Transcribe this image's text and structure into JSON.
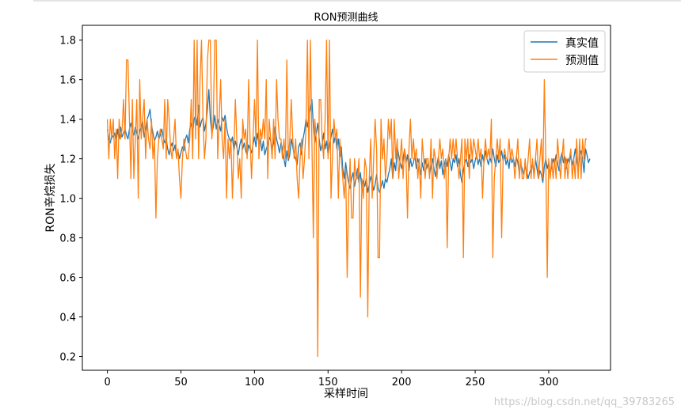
{
  "watermark": "https://blog.csdn.net/qq_39783265",
  "chart_data": {
    "type": "line",
    "title": "RON预测曲线",
    "xlabel": "采样时间",
    "ylabel": "RON辛烷损失",
    "xlim": [
      -17,
      342
    ],
    "ylim": [
      0.13,
      1.875
    ],
    "xticks": [
      0,
      50,
      100,
      150,
      200,
      250,
      300
    ],
    "yticks": [
      0.2,
      0.4,
      0.6,
      0.8,
      1.0,
      1.2,
      1.4,
      1.6,
      1.8
    ],
    "ytick_labels": [
      "0.2",
      "0.4",
      "0.6",
      "0.8",
      "1.0",
      "1.2",
      "1.4",
      "1.6",
      "1.8"
    ],
    "grid": false,
    "legend": "top-right",
    "series": [
      {
        "name": "真实值",
        "color": "#1f77b4",
        "values": [
          1.35,
          1.3,
          1.28,
          1.32,
          1.31,
          1.33,
          1.28,
          1.35,
          1.3,
          1.36,
          1.31,
          1.33,
          1.35,
          1.32,
          1.3,
          1.35,
          1.38,
          1.34,
          1.32,
          1.36,
          1.33,
          1.3,
          1.34,
          1.36,
          1.39,
          1.31,
          1.35,
          1.4,
          1.42,
          1.45,
          1.37,
          1.33,
          1.29,
          1.31,
          1.34,
          1.3,
          1.32,
          1.35,
          1.31,
          1.28,
          1.3,
          1.25,
          1.22,
          1.26,
          1.28,
          1.24,
          1.27,
          1.21,
          1.24,
          1.2,
          1.23,
          1.26,
          1.24,
          1.3,
          1.32,
          1.28,
          1.35,
          1.38,
          1.33,
          1.4,
          1.42,
          1.37,
          1.47,
          1.36,
          1.39,
          1.41,
          1.34,
          1.38,
          1.45,
          1.55,
          1.4,
          1.33,
          1.36,
          1.42,
          1.35,
          1.4,
          1.37,
          1.34,
          1.41,
          1.39,
          1.42,
          1.36,
          1.32,
          1.3,
          1.28,
          1.31,
          1.24,
          1.29,
          1.26,
          1.22,
          1.27,
          1.3,
          1.25,
          1.28,
          1.24,
          1.22,
          1.27,
          1.25,
          1.23,
          1.27,
          1.31,
          1.26,
          1.33,
          1.28,
          1.3,
          1.24,
          1.29,
          1.22,
          1.25,
          1.27,
          1.31,
          1.29,
          1.25,
          1.28,
          1.36,
          1.3,
          1.27,
          1.23,
          1.28,
          1.25,
          1.2,
          1.16,
          1.24,
          1.19,
          1.22,
          1.3,
          1.26,
          1.22,
          1.2,
          1.17,
          1.26,
          1.28,
          1.22,
          1.3,
          1.34,
          1.4,
          1.36,
          1.42,
          1.45,
          1.5,
          1.37,
          1.28,
          1.33,
          1.38,
          1.3,
          1.24,
          1.27,
          1.33,
          1.25,
          1.29,
          1.22,
          1.27,
          1.31,
          1.35,
          1.28,
          1.32,
          1.25,
          1.3,
          1.21,
          1.26,
          1.15,
          1.1,
          1.18,
          1.12,
          1.08,
          1.05,
          1.1,
          1.13,
          1.06,
          1.1,
          1.15,
          1.08,
          1.13,
          1.05,
          1.09,
          1.06,
          1.1,
          1.03,
          1.07,
          1.11,
          1.08,
          1.04,
          1.07,
          1.12,
          1.05,
          1.03,
          1.06,
          1.09,
          1.05,
          1.1,
          1.08,
          1.12,
          1.15,
          1.2,
          1.1,
          1.18,
          1.14,
          1.26,
          1.22,
          1.18,
          1.15,
          1.2,
          1.25,
          1.18,
          1.22,
          1.14,
          1.2,
          1.16,
          1.18,
          1.22,
          1.15,
          1.2,
          1.17,
          1.12,
          1.18,
          1.14,
          1.2,
          1.15,
          1.18,
          1.12,
          1.16,
          1.2,
          1.15,
          1.11,
          1.17,
          1.21,
          1.15,
          1.19,
          1.12,
          1.17,
          1.2,
          1.16,
          1.22,
          1.18,
          1.14,
          1.2,
          1.18,
          1.22,
          1.16,
          1.2,
          1.12,
          1.08,
          1.14,
          1.18,
          1.2,
          1.16,
          1.22,
          1.18,
          1.2,
          1.15,
          1.19,
          1.22,
          1.17,
          1.2,
          1.16,
          1.22,
          1.18,
          1.24,
          1.2,
          1.17,
          1.21,
          1.18,
          1.25,
          1.2,
          1.16,
          1.22,
          1.18,
          1.2,
          1.24,
          1.19,
          1.22,
          1.17,
          1.2,
          1.15,
          1.22,
          1.18,
          1.2,
          1.16,
          1.21,
          1.18,
          1.13,
          1.17,
          1.15,
          1.12,
          1.16,
          1.14,
          1.1,
          1.13,
          1.15,
          1.18,
          1.12,
          1.2,
          1.15,
          1.1,
          1.14,
          1.12,
          1.08,
          1.16,
          1.2,
          1.15,
          1.18,
          1.12,
          1.16,
          1.2,
          1.17,
          1.22,
          1.18,
          1.14,
          1.2,
          1.23,
          1.18,
          1.21,
          1.15,
          1.2,
          1.18,
          1.22,
          1.17,
          1.2,
          1.25,
          1.19,
          1.15,
          1.21,
          1.24,
          1.2,
          1.13,
          1.25,
          1.22,
          1.18,
          1.2
        ]
      },
      {
        "name": "预测值",
        "color": "#ff7f0e",
        "values": [
          1.4,
          1.2,
          1.4,
          1.3,
          1.4,
          1.2,
          1.35,
          1.1,
          1.4,
          1.3,
          1.35,
          1.5,
          1.3,
          1.7,
          1.7,
          1.4,
          1.1,
          1.5,
          1.1,
          1.3,
          1.5,
          1.0,
          1.6,
          1.3,
          1.4,
          1.5,
          1.2,
          1.4,
          1.3,
          1.25,
          1.4,
          1.2,
          1.3,
          0.9,
          1.2,
          1.3,
          1.35,
          1.3,
          1.25,
          1.5,
          1.2,
          1.5,
          1.4,
          1.25,
          1.2,
          1.3,
          1.4,
          1.2,
          1.25,
          1.1,
          1.0,
          1.2,
          1.3,
          1.25,
          1.2,
          1.2,
          1.3,
          1.5,
          1.2,
          1.8,
          1.3,
          1.8,
          1.2,
          1.6,
          1.8,
          1.4,
          1.2,
          1.3,
          1.7,
          1.8,
          1.8,
          1.3,
          1.4,
          1.8,
          1.8,
          1.2,
          1.4,
          1.6,
          1.3,
          1.2,
          1.4,
          1.0,
          1.3,
          1.2,
          1.3,
          1.0,
          1.25,
          1.5,
          1.3,
          1.1,
          1.2,
          1.0,
          1.4,
          1.3,
          1.35,
          1.2,
          1.6,
          1.3,
          1.1,
          1.3,
          1.5,
          1.3,
          1.8,
          1.2,
          1.35,
          1.3,
          1.4,
          1.3,
          1.6,
          1.1,
          1.4,
          1.3,
          1.2,
          1.4,
          1.2,
          1.6,
          1.4,
          1.3,
          1.3,
          1.2,
          1.3,
          1.2,
          1.7,
          1.2,
          1.3,
          1.5,
          1.3,
          1.2,
          1.3,
          1.1,
          1.0,
          1.2,
          1.3,
          1.1,
          1.2,
          1.35,
          1.8,
          1.2,
          1.8,
          1.3,
          0.8,
          1.4,
          1.3,
          0.2,
          1.5,
          1.5,
          1.3,
          1.2,
          1.4,
          1.8,
          1.2,
          1.8,
          1.0,
          1.2,
          1.4,
          1.3,
          1.35,
          1.0,
          1.3,
          1.2,
          1.1,
          1.0,
          1.15,
          0.6,
          1.0,
          1.2,
          0.9,
          0.9,
          1.2,
          1.1,
          1.1,
          1.2,
          0.5,
          1.1,
          1.0,
          1.2,
          1.15,
          0.4,
          1.1,
          1.3,
          1.0,
          1.2,
          1.4,
          1.25,
          0.7,
          0.7,
          1.4,
          1.2,
          1.3,
          1.1,
          1.2,
          1.4,
          1.3,
          1.4,
          1.1,
          1.4,
          1.2,
          1.3,
          1.1,
          1.2,
          1.3,
          1.1,
          1.25,
          1.2,
          0.9,
          1.25,
          1.4,
          1.2,
          1.3,
          1.2,
          1.25,
          1.1,
          1.2,
          1.0,
          1.3,
          1.2,
          1.1,
          1.2,
          1.2,
          1.1,
          1.3,
          1.0,
          1.25,
          1.2,
          1.1,
          1.2,
          1.3,
          1.2,
          1.25,
          1.1,
          1.2,
          0.75,
          1.2,
          1.3,
          1.2,
          1.3,
          1.2,
          1.3,
          1.2,
          1.1,
          1.2,
          1.3,
          0.7,
          1.3,
          1.2,
          1.3,
          1.1,
          1.3,
          1.2,
          1.3,
          1.25,
          1.2,
          1.3,
          1.2,
          1.25,
          1.0,
          1.2,
          1.3,
          1.2,
          1.25,
          1.2,
          1.4,
          0.7,
          1.1,
          1.2,
          1.3,
          1.2,
          1.3,
          0.8,
          1.2,
          1.25,
          1.2,
          1.2,
          1.3,
          1.2,
          1.25,
          1.2,
          1.1,
          1.2,
          1.3,
          1.1,
          1.2,
          1.1,
          1.1,
          1.2,
          1.1,
          1.2,
          1.3,
          1.1,
          1.2,
          1.1,
          1.2,
          1.3,
          1.1,
          1.2,
          1.3,
          1.1,
          1.6,
          1.2,
          0.6,
          1.2,
          1.1,
          1.2,
          1.1,
          1.2,
          1.1,
          1.3,
          1.2,
          1.1,
          1.2,
          1.3,
          1.1,
          1.2,
          1.1,
          1.2,
          1.25,
          1.1,
          1.2,
          1.1,
          1.3,
          1.1,
          1.3,
          1.1,
          1.3,
          1.2,
          1.3,
          1.3
        ]
      }
    ]
  }
}
